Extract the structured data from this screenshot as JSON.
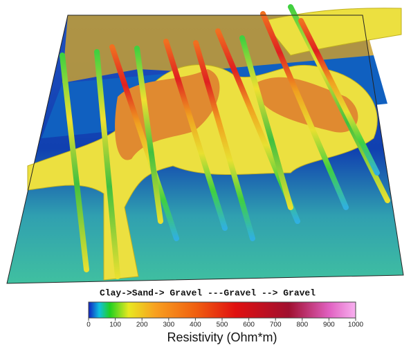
{
  "figure": {
    "annotation": "Clay->Sand-> Gravel ---Gravel --> Gravel",
    "colorbar": {
      "label": "Resistivity (Ohm*m)",
      "lim": [
        0,
        1000
      ],
      "ticks": [
        0,
        100,
        200,
        300,
        400,
        500,
        600,
        700,
        800,
        900,
        1000
      ],
      "stops": [
        {
          "value": 0,
          "color": "#1020c0"
        },
        {
          "value": 40,
          "color": "#10c0e0"
        },
        {
          "value": 80,
          "color": "#20d020"
        },
        {
          "value": 150,
          "color": "#e8e820"
        },
        {
          "value": 250,
          "color": "#f8a020"
        },
        {
          "value": 400,
          "color": "#f06010"
        },
        {
          "value": 550,
          "color": "#e01010"
        },
        {
          "value": 750,
          "color": "#a01030"
        },
        {
          "value": 900,
          "color": "#e060c0"
        },
        {
          "value": 1000,
          "color": "#f8b0f0"
        }
      ]
    }
  }
}
